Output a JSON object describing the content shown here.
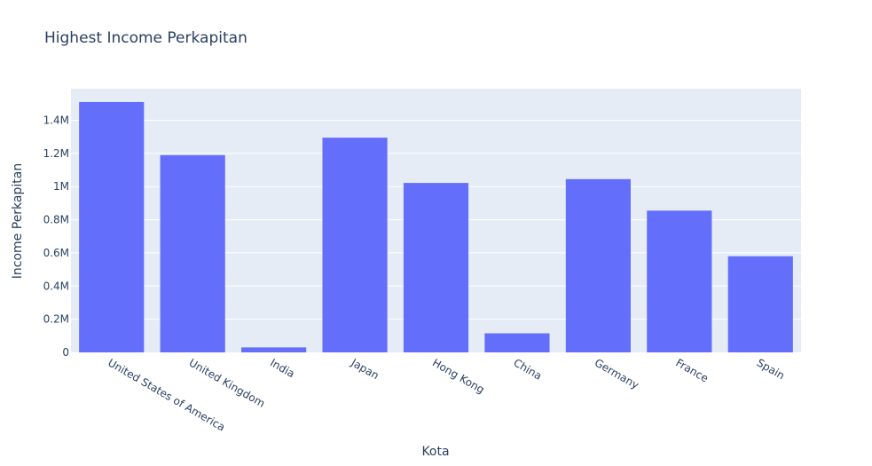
{
  "chart_data": {
    "type": "bar",
    "title": "Highest Income Perkapitan",
    "xlabel": "Kota",
    "ylabel": "Income Perkapitan",
    "categories": [
      "United States of America",
      "United Kingdom",
      "India",
      "Japan",
      "Hong Kong",
      "China",
      "Germany",
      "France",
      "Spain"
    ],
    "values": [
      1510000,
      1190000,
      30000,
      1295000,
      1022000,
      115000,
      1045000,
      855000,
      580000
    ],
    "ylim": [
      0,
      1590000
    ],
    "yticks": [
      {
        "value": 0,
        "label": "0"
      },
      {
        "value": 200000,
        "label": "0.2M"
      },
      {
        "value": 400000,
        "label": "0.4M"
      },
      {
        "value": 600000,
        "label": "0.6M"
      },
      {
        "value": 800000,
        "label": "0.8M"
      },
      {
        "value": 1000000,
        "label": "1M"
      },
      {
        "value": 1200000,
        "label": "1.2M"
      },
      {
        "value": 1400000,
        "label": "1.4M"
      }
    ],
    "grid": true,
    "colors": {
      "bar": "#636efa",
      "plot_bg": "#e5ecf6",
      "grid": "#ffffff",
      "text": "#2a3f5f"
    }
  }
}
